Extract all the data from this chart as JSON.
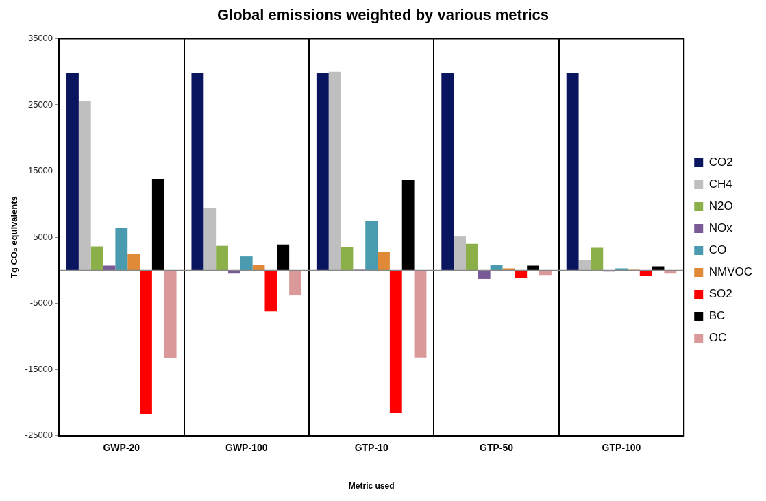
{
  "chart_data": {
    "type": "bar",
    "title": "Global emissions weighted by various metrics",
    "xlabel": "Metric used",
    "ylabel": "Tg CO₂ equivalents",
    "categories": [
      "GWP-20",
      "GWP-100",
      "GTP-10",
      "GTP-50",
      "GTP-100"
    ],
    "series": [
      {
        "name": "CO2",
        "color": "#0a1560",
        "values": [
          29800,
          29800,
          29800,
          29800,
          29800
        ]
      },
      {
        "name": "CH4",
        "color": "#bfbfbf",
        "values": [
          25600,
          9400,
          30000,
          5100,
          1500
        ]
      },
      {
        "name": "N2O",
        "color": "#8bb04a",
        "values": [
          3600,
          3700,
          3500,
          4000,
          3400
        ]
      },
      {
        "name": "NOx",
        "color": "#7a5a96",
        "values": [
          700,
          -500,
          100,
          -1300,
          -200
        ]
      },
      {
        "name": "CO",
        "color": "#4a9bb0",
        "values": [
          6400,
          2100,
          7400,
          800,
          300
        ]
      },
      {
        "name": "NMVOC",
        "color": "#e08a38",
        "values": [
          2500,
          800,
          2800,
          300,
          100
        ]
      },
      {
        "name": "SO2",
        "color": "#ff0000",
        "values": [
          -21700,
          -6200,
          -21500,
          -1100,
          -900
        ]
      },
      {
        "name": "BC",
        "color": "#000000",
        "values": [
          13800,
          3900,
          13700,
          700,
          600
        ]
      },
      {
        "name": "OC",
        "color": "#da9898",
        "values": [
          -13300,
          -3800,
          -13200,
          -700,
          -500
        ]
      }
    ],
    "ylim": [
      -25000,
      35000
    ],
    "yticks": [
      -25000,
      -15000,
      -5000,
      5000,
      15000,
      25000,
      35000
    ],
    "grid": "x",
    "legend": "right"
  }
}
